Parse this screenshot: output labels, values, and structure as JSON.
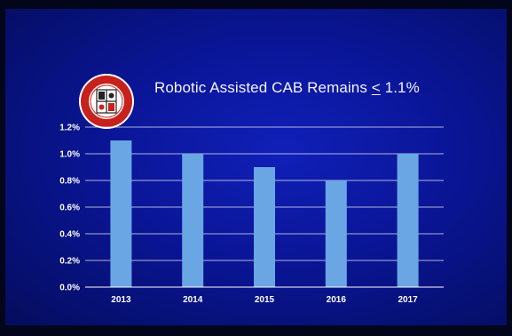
{
  "slide": {
    "title_prefix": "Robotic Assisted CAB Remains ",
    "title_symbol": "<",
    "title_suffix": " 1.1%",
    "logo_icon": "society-seal-icon",
    "background_color": "#0a1596",
    "bar_color": "#6aa6e4"
  },
  "chart_data": {
    "type": "bar",
    "categories": [
      "2013",
      "2014",
      "2015",
      "2016",
      "2017"
    ],
    "values": [
      1.1,
      1.0,
      0.9,
      0.8,
      1.0
    ],
    "title": "Robotic Assisted CAB Remains < 1.1%",
    "xlabel": "",
    "ylabel": "",
    "ylim": [
      0,
      1.2
    ],
    "yticks": [
      0,
      0.2,
      0.4,
      0.6,
      0.8,
      1.0,
      1.2
    ],
    "ytick_labels": [
      "0.0%",
      "0.2%",
      "0.4%",
      "0.6%",
      "0.8%",
      "1.0%",
      "1.2%"
    ],
    "grid": true,
    "legend": "none"
  }
}
